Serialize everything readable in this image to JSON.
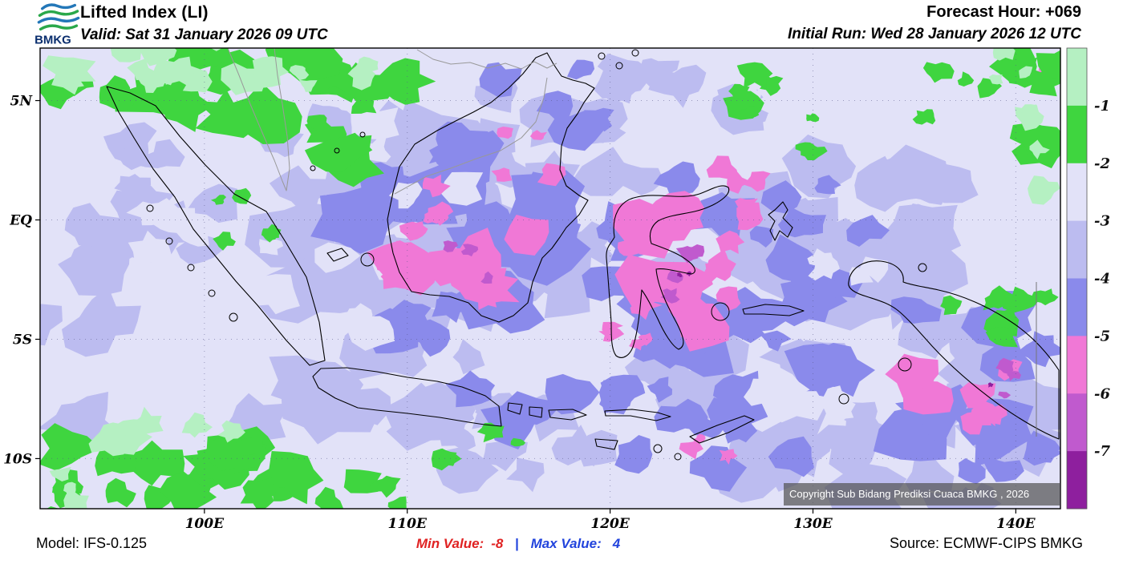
{
  "header": {
    "logo_text": "BMKG",
    "title": "Lifted Index (LI)",
    "valid": "Valid: Sat 31 January 2026 09 UTC",
    "forecast_hour": "Forecast Hour: +069",
    "initial_run": "Initial Run: Wed 28 January 2026 12 UTC"
  },
  "map": {
    "copyright": "Copyright Sub Bidang Prediksi Cuaca BMKG , 2026"
  },
  "footer": {
    "model": "Model: IFS-0.125",
    "min_label": "Min Value:",
    "min_value": "-8",
    "separator": "|",
    "max_label": "Max Value:",
    "max_value": "4",
    "source": "Source: ECMWF-CIPS BMKG"
  },
  "chart_data": {
    "type": "heatmap",
    "title": "Lifted Index (LI)",
    "region": "Indonesia",
    "valid_time": "Sat 31 January 2026 09 UTC",
    "initial_run": "Wed 28 January 2026 12 UTC",
    "forecast_hour": "+069",
    "model": "IFS-0.125",
    "source": "ECMWF-CIPS BMKG",
    "min_value": -8,
    "max_value": 4,
    "lon_range": [
      91.9,
      142.2
    ],
    "lat_range": [
      -12.1,
      7.2
    ],
    "lat_ticks": [
      {
        "value": 5,
        "label": "5N"
      },
      {
        "value": 0,
        "label": "EQ"
      },
      {
        "value": -5,
        "label": "5S"
      },
      {
        "value": -10,
        "label": "10S"
      }
    ],
    "lon_ticks": [
      {
        "value": 100,
        "label": "100E"
      },
      {
        "value": 110,
        "label": "110E"
      },
      {
        "value": 120,
        "label": "120E"
      },
      {
        "value": 130,
        "label": "130E"
      },
      {
        "value": 140,
        "label": "140E"
      }
    ],
    "legend": {
      "position": "right",
      "ticks": [
        "-1",
        "-2",
        "-3",
        "-4",
        "-5",
        "-6",
        "-7"
      ],
      "colors_top_to_bottom": [
        "#b5f0c2",
        "#3fd53f",
        "#e2e2f8",
        "#bcbcf0",
        "#8a8aeb",
        "#f078d6",
        "#c05ace",
        "#8e1f9e"
      ]
    }
  }
}
